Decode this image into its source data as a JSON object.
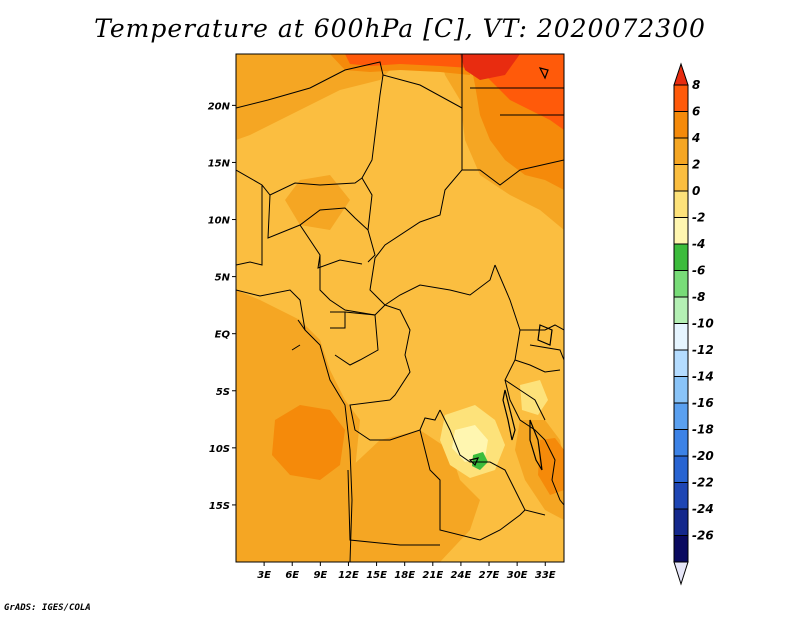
{
  "title": "Temperature at 600hPa [C], VT: 2020072300",
  "credit": "GrADS: IGES/COLA",
  "map": {
    "lat_labels": [
      {
        "label": "20N",
        "lat": 20
      },
      {
        "label": "15N",
        "lat": 15
      },
      {
        "label": "10N",
        "lat": 10
      },
      {
        "label": "5N",
        "lat": 5
      },
      {
        "label": "EQ",
        "lat": 0
      },
      {
        "label": "5S",
        "lat": -5
      },
      {
        "label": "10S",
        "lat": -10
      },
      {
        "label": "15S",
        "lat": -15
      }
    ],
    "lon_labels": [
      {
        "label": "3E",
        "lon": 3
      },
      {
        "label": "6E",
        "lon": 6
      },
      {
        "label": "9E",
        "lon": 9
      },
      {
        "label": "12E",
        "lon": 12
      },
      {
        "label": "15E",
        "lon": 15
      },
      {
        "label": "18E",
        "lon": 18
      },
      {
        "label": "21E",
        "lon": 21
      },
      {
        "label": "24E",
        "lon": 24
      },
      {
        "label": "27E",
        "lon": 27
      },
      {
        "label": "30E",
        "lon": 30
      },
      {
        "label": "33E",
        "lon": 33
      }
    ],
    "lon_range": [
      0,
      35
    ],
    "lat_range": [
      -20,
      24.5
    ]
  },
  "colorbar": {
    "labels": [
      "8",
      "6",
      "4",
      "2",
      "0",
      "-2",
      "-4",
      "-6",
      "-8",
      "-10",
      "-12",
      "-14",
      "-16",
      "-18",
      "-20",
      "-22",
      "-24",
      "-26"
    ],
    "colors": [
      "#e82c10",
      "#ff5a0a",
      "#f58a0a",
      "#f5a623",
      "#fbbe40",
      "#fde27a",
      "#fff6b0",
      "#3cbc3c",
      "#78dc78",
      "#b4f0b4",
      "#e6f5ff",
      "#b4dcff",
      "#8ac4f8",
      "#5aa0f0",
      "#3c82e6",
      "#2864d2",
      "#1e46b4",
      "#14288c",
      "#0a0a60",
      "#e6e6f8"
    ]
  }
}
